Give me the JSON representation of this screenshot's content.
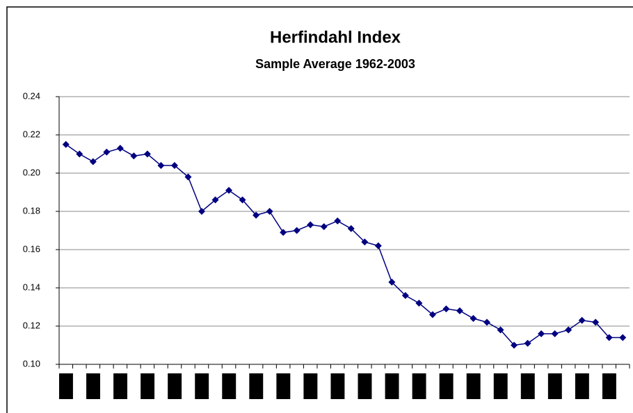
{
  "chart_data": {
    "type": "line",
    "title": "Herfindahl Index",
    "subtitle": "Sample Average 1962-2003",
    "categories": [
      null,
      null,
      null,
      null,
      null,
      null,
      null,
      null,
      null,
      null,
      null,
      null,
      null,
      null,
      null,
      null,
      null,
      null,
      null,
      null,
      null,
      null,
      null,
      null,
      null,
      null,
      null,
      null,
      null,
      null,
      null,
      null,
      null,
      null,
      null,
      null,
      null,
      null,
      null,
      null,
      null,
      null
    ],
    "series": [
      {
        "color": "#000080",
        "values": [
          0.215,
          0.21,
          0.206,
          0.211,
          0.213,
          0.209,
          0.21,
          0.204,
          0.204,
          0.198,
          0.18,
          0.186,
          0.191,
          0.186,
          0.178,
          0.18,
          0.169,
          0.17,
          0.173,
          0.172,
          0.175,
          0.171,
          0.164,
          0.162,
          0.143,
          0.136,
          0.132,
          0.126,
          0.129,
          0.128,
          0.124,
          0.122,
          0.118,
          0.11,
          0.111,
          0.116,
          0.116,
          0.118,
          0.123,
          0.122,
          0.114,
          0.114
        ]
      }
    ],
    "ylim": [
      0.1,
      0.24
    ],
    "yticks": [
      {
        "value": 0.1,
        "label": "0.10"
      },
      0.12,
      0.14,
      0.16,
      0.18,
      {
        "value": 0.2,
        "label": "0.20"
      },
      0.22,
      0.24
    ],
    "grid": true
  }
}
